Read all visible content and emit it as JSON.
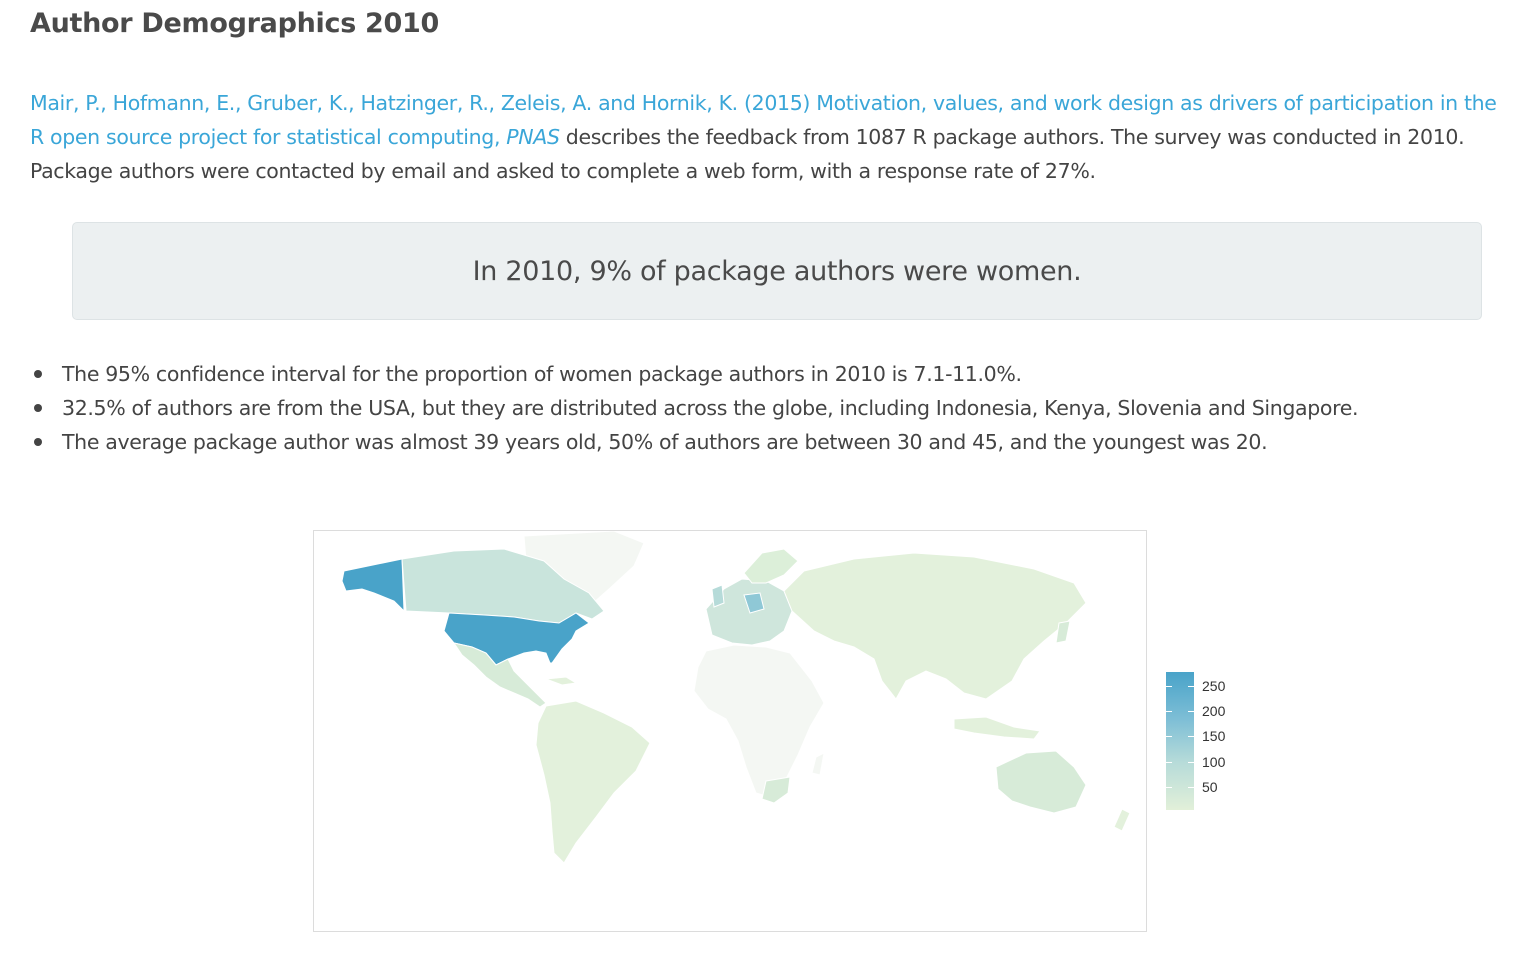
{
  "header": {
    "title": "Author Demographics 2010"
  },
  "intro": {
    "citation_link": "Mair, P., Hofmann, E., Gruber, K., Hatzinger, R., Zeleis, A. and Hornik, K. (2015) Motivation, values, and work design as drivers of participation in the R open source project for statistical computing,",
    "journal": "PNAS",
    "rest": " describes the feedback from 1087 R package authors. The survey was conducted in 2010. Package authors were contacted by email and asked to complete a web form, with a response rate of 27%."
  },
  "callout": {
    "text": "In 2010, 9% of package authors were women."
  },
  "facts": [
    "The 95% confidence interval for the proportion of women package authors in 2010 is 7.1-11.0%.",
    "32.5% of authors are from the USA, but they are distributed across the globe, including Indonesia, Kenya, Slovenia and Singapore.",
    "The average package author was almost 39 years old, 50% of authors are between 30 and 45, and the youngest was 20."
  ],
  "map": {
    "legend_ticks": [
      "250",
      "200",
      "150",
      "100",
      "50"
    ],
    "colors": {
      "high": "#49a3c9",
      "mid": "#a9d3d8",
      "low": "#e3f1dc",
      "border": "#ffffff",
      "none": "#f4f7f3"
    }
  }
}
